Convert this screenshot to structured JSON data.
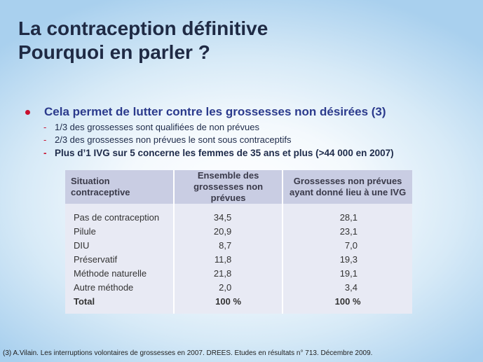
{
  "title": {
    "line1": "La contraception définitive",
    "line2": "Pourquoi en parler ?"
  },
  "bullet": {
    "text": "Cela permet de lutter contre les grossesses non désirées (3)",
    "subpoints": [
      "1/3 des grossesses sont qualifiées de non prévues",
      "2/3 des grossesses non prévues le sont sous contraceptifs",
      "Plus d’1 IVG sur 5 concerne les femmes de 35 ans et plus (>44 000 en 2007)"
    ]
  },
  "table": {
    "headers": [
      "Situation contraceptive",
      "Ensemble des grossesses non prévues",
      "Grossesses non prévues ayant donné lieu à une IVG"
    ],
    "rows": [
      {
        "label": "Pas de contraception",
        "v1": "34,5",
        "v2": "28,1"
      },
      {
        "label": "Pilule",
        "v1": "20,9",
        "v2": "23,1"
      },
      {
        "label": "DIU",
        "v1": "8,7",
        "v2": "7,0"
      },
      {
        "label": "Préservatif",
        "v1": "11,8",
        "v2": "19,3"
      },
      {
        "label": "Méthode naturelle",
        "v1": "21,8",
        "v2": "19,1"
      },
      {
        "label": "Autre méthode",
        "v1": "2,0",
        "v2": "3,4"
      }
    ],
    "total": {
      "label": "Total",
      "v1": "100 %",
      "v2": "100 %"
    }
  },
  "footnote": "(3) A.Vilain.  Les interruptions volontaires de grossesses en 2007. DREES. Etudes en résultats n° 713. Décembre 2009.",
  "colors": {
    "title": "#1f2a44",
    "bullet_text": "#2b3a8c",
    "bullet_dot": "#c8102e",
    "table_header": "#c9cde3",
    "table_body": "#e8eaf4"
  }
}
